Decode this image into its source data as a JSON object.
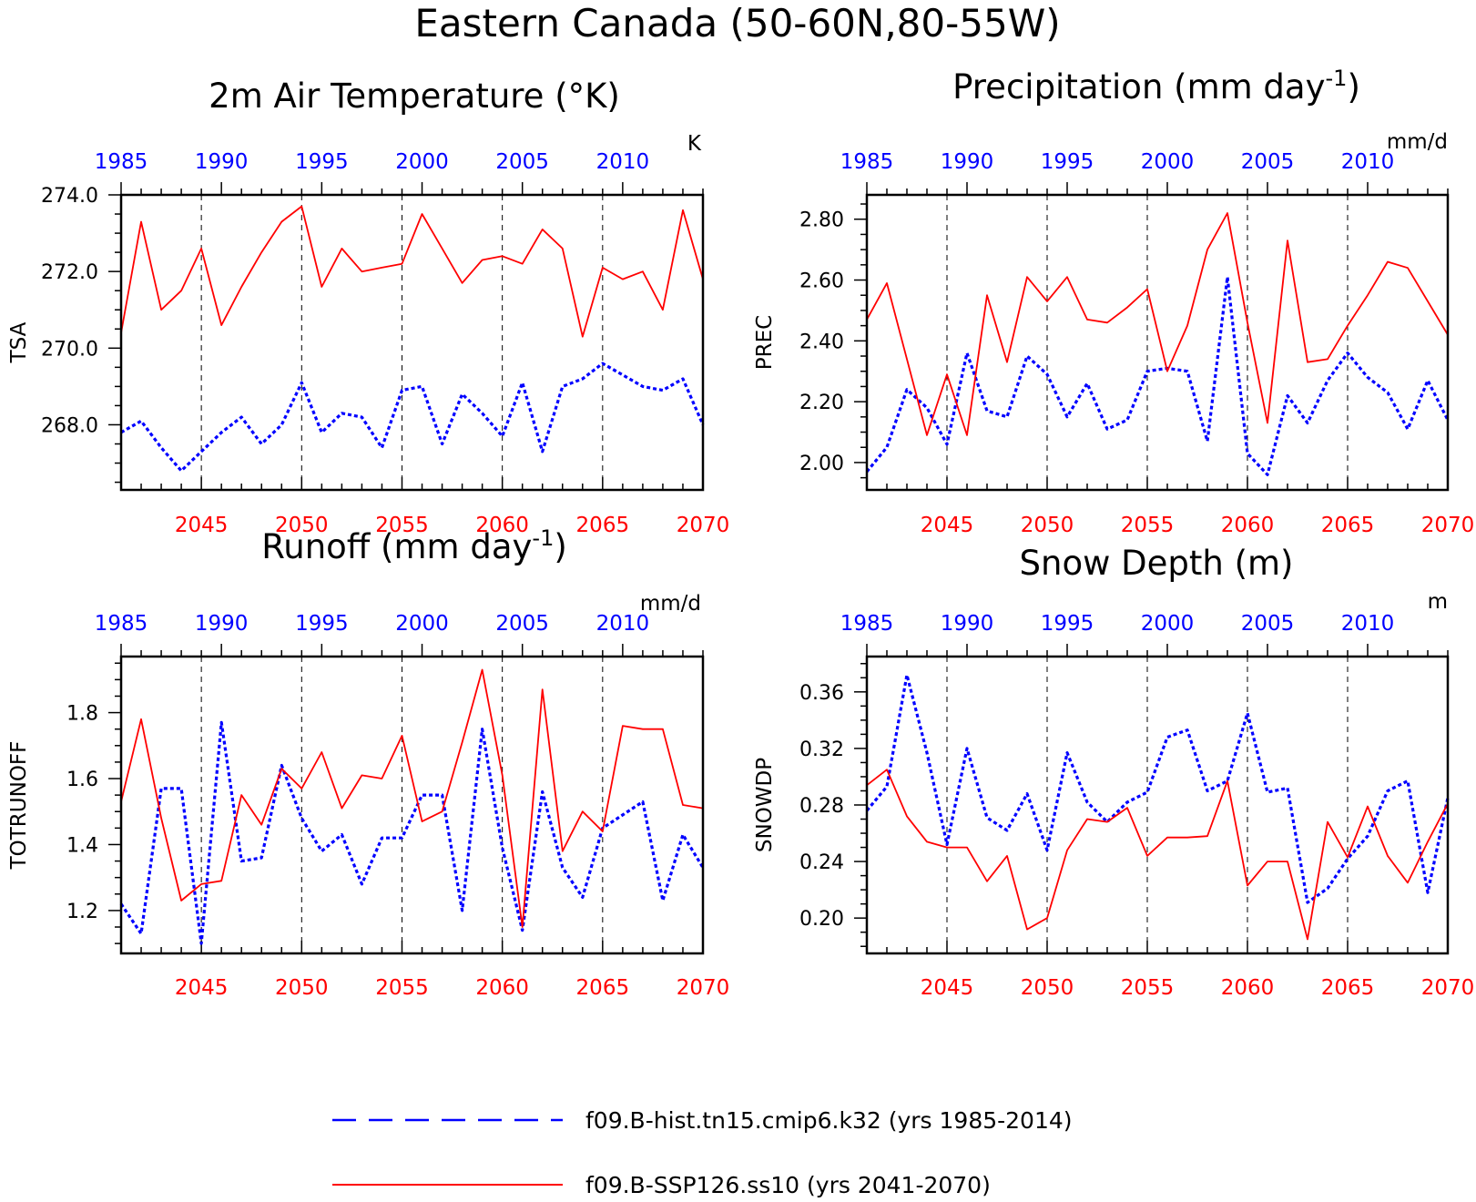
{
  "figure": {
    "title": "Eastern Canada (50-60N,80-55W)",
    "colors": {
      "hist": "#0000ff",
      "ssp": "#ff0000",
      "axis": "#000000"
    }
  },
  "legend": {
    "hist": "f09.B-hist.tn15.cmip6.k32 (yrs 1985-2014)",
    "ssp": "f09.B-SSP126.ss10 (yrs 2041-2070)"
  },
  "chart_data": [
    {
      "type": "line",
      "title": "2m Air Temperature (°K)",
      "ylabel": "TSA",
      "units": "K",
      "ylim": [
        266.3,
        274.0
      ],
      "yticks": [
        268.0,
        270.0,
        272.0,
        274.0
      ],
      "ytick_labels": [
        "268.0",
        "270.0",
        "272.0",
        "274.0"
      ],
      "x_bottom": {
        "range": [
          2041,
          2070
        ],
        "ticks": [
          2045,
          2050,
          2055,
          2060,
          2065,
          2070
        ]
      },
      "x_top": {
        "range": [
          1985,
          2014
        ],
        "ticks": [
          1985,
          1990,
          1995,
          2000,
          2005,
          2010
        ]
      },
      "grid_vertical": [
        2045,
        2050,
        2055,
        2060,
        2065
      ],
      "series": [
        {
          "key": "hist",
          "years": [
            1985,
            2014
          ],
          "values": [
            267.8,
            268.1,
            267.4,
            266.8,
            267.3,
            267.8,
            268.2,
            267.5,
            268.0,
            269.1,
            267.8,
            268.3,
            268.2,
            267.4,
            268.9,
            269.0,
            267.5,
            268.8,
            268.3,
            267.7,
            269.1,
            267.3,
            269.0,
            269.2,
            269.6,
            269.3,
            269.0,
            268.9,
            269.2,
            268.0
          ]
        },
        {
          "key": "ssp",
          "years": [
            2041,
            2070
          ],
          "values": [
            270.4,
            273.3,
            271.0,
            271.5,
            272.6,
            270.6,
            271.6,
            272.5,
            273.3,
            273.7,
            271.6,
            272.6,
            272.0,
            272.1,
            272.2,
            273.5,
            272.6,
            271.7,
            272.3,
            272.4,
            272.2,
            273.1,
            272.6,
            270.3,
            272.1,
            271.8,
            272.0,
            271.0,
            273.6,
            271.8
          ]
        }
      ]
    },
    {
      "type": "line",
      "title": "Precipitation (mm day",
      "title_exp": "-1",
      "title_end": ")",
      "ylabel": "PREC",
      "units": "mm/d",
      "ylim": [
        1.91,
        2.88
      ],
      "yticks": [
        2.0,
        2.2,
        2.4,
        2.6,
        2.8
      ],
      "ytick_labels": [
        "2.00",
        "2.20",
        "2.40",
        "2.60",
        "2.80"
      ],
      "x_bottom": {
        "range": [
          2041,
          2070
        ],
        "ticks": [
          2045,
          2050,
          2055,
          2060,
          2065,
          2070
        ]
      },
      "x_top": {
        "range": [
          1985,
          2014
        ],
        "ticks": [
          1985,
          1990,
          1995,
          2000,
          2005,
          2010
        ]
      },
      "grid_vertical": [
        2045,
        2050,
        2055,
        2060,
        2065
      ],
      "series": [
        {
          "key": "hist",
          "years": [
            1985,
            2014
          ],
          "values": [
            1.97,
            2.05,
            2.24,
            2.18,
            2.06,
            2.36,
            2.17,
            2.15,
            2.35,
            2.29,
            2.15,
            2.26,
            2.11,
            2.14,
            2.3,
            2.31,
            2.3,
            2.07,
            2.61,
            2.03,
            1.96,
            2.22,
            2.13,
            2.27,
            2.36,
            2.28,
            2.23,
            2.11,
            2.27,
            2.14
          ]
        },
        {
          "key": "ssp",
          "years": [
            2041,
            2070
          ],
          "values": [
            2.47,
            2.59,
            2.34,
            2.09,
            2.29,
            2.09,
            2.55,
            2.33,
            2.61,
            2.53,
            2.61,
            2.47,
            2.46,
            2.51,
            2.57,
            2.3,
            2.45,
            2.7,
            2.82,
            2.46,
            2.13,
            2.73,
            2.33,
            2.34,
            2.45,
            2.55,
            2.66,
            2.64,
            2.53,
            2.42
          ]
        }
      ]
    },
    {
      "type": "line",
      "title": "Runoff (mm day",
      "title_exp": "-1",
      "title_end": ")",
      "ylabel": "TOTRUNOFF",
      "units": "mm/d",
      "ylim": [
        1.07,
        1.97
      ],
      "yticks": [
        1.2,
        1.4,
        1.6,
        1.8
      ],
      "ytick_labels": [
        "1.2",
        "1.4",
        "1.6",
        "1.8"
      ],
      "x_bottom": {
        "range": [
          2041,
          2070
        ],
        "ticks": [
          2045,
          2050,
          2055,
          2060,
          2065,
          2070
        ]
      },
      "x_top": {
        "range": [
          1985,
          2014
        ],
        "ticks": [
          1985,
          1990,
          1995,
          2000,
          2005,
          2010
        ]
      },
      "grid_vertical": [
        2045,
        2050,
        2055,
        2060,
        2065
      ],
      "series": [
        {
          "key": "hist",
          "years": [
            1985,
            2014
          ],
          "values": [
            1.22,
            1.13,
            1.57,
            1.57,
            1.1,
            1.77,
            1.35,
            1.36,
            1.64,
            1.48,
            1.38,
            1.43,
            1.28,
            1.42,
            1.42,
            1.55,
            1.55,
            1.2,
            1.75,
            1.39,
            1.14,
            1.56,
            1.33,
            1.24,
            1.45,
            1.49,
            1.53,
            1.23,
            1.43,
            1.33
          ]
        },
        {
          "key": "ssp",
          "years": [
            2041,
            2070
          ],
          "values": [
            1.53,
            1.78,
            1.48,
            1.23,
            1.28,
            1.29,
            1.55,
            1.46,
            1.63,
            1.57,
            1.68,
            1.51,
            1.61,
            1.6,
            1.73,
            1.47,
            1.5,
            1.71,
            1.93,
            1.61,
            1.15,
            1.87,
            1.38,
            1.5,
            1.44,
            1.76,
            1.75,
            1.75,
            1.52,
            1.51
          ]
        }
      ]
    },
    {
      "type": "line",
      "title": "Snow Depth (m)",
      "ylabel": "SNOWDP",
      "units": "m",
      "ylim": [
        0.175,
        0.385
      ],
      "yticks": [
        0.2,
        0.24,
        0.28,
        0.32,
        0.36
      ],
      "ytick_labels": [
        "0.20",
        "0.24",
        "0.28",
        "0.32",
        "0.36"
      ],
      "x_bottom": {
        "range": [
          2041,
          2070
        ],
        "ticks": [
          2045,
          2050,
          2055,
          2060,
          2065,
          2070
        ]
      },
      "x_top": {
        "range": [
          1985,
          2014
        ],
        "ticks": [
          1985,
          1990,
          1995,
          2000,
          2005,
          2010
        ]
      },
      "grid_vertical": [
        2045,
        2050,
        2055,
        2060,
        2065
      ],
      "series": [
        {
          "key": "hist",
          "years": [
            1985,
            2014
          ],
          "values": [
            0.276,
            0.293,
            0.372,
            0.317,
            0.252,
            0.32,
            0.271,
            0.262,
            0.288,
            0.248,
            0.317,
            0.282,
            0.268,
            0.282,
            0.289,
            0.328,
            0.333,
            0.29,
            0.297,
            0.345,
            0.289,
            0.292,
            0.211,
            0.221,
            0.242,
            0.258,
            0.29,
            0.297,
            0.218,
            0.285
          ]
        },
        {
          "key": "ssp",
          "years": [
            2041,
            2070
          ],
          "values": [
            0.294,
            0.305,
            0.272,
            0.254,
            0.25,
            0.25,
            0.226,
            0.244,
            0.192,
            0.2,
            0.248,
            0.27,
            0.268,
            0.278,
            0.244,
            0.257,
            0.257,
            0.258,
            0.297,
            0.223,
            0.24,
            0.24,
            0.185,
            0.268,
            0.243,
            0.279,
            0.244,
            0.225,
            0.254,
            0.281
          ]
        }
      ]
    }
  ]
}
